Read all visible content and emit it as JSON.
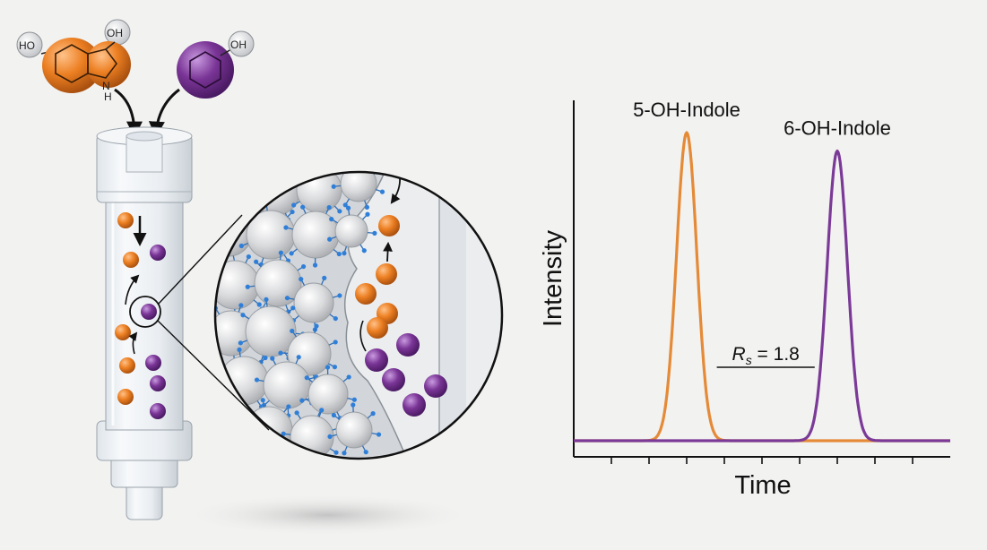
{
  "molecules": {
    "indole_oh_left": "HO",
    "indole_oh_top": "OH",
    "indole_nh_n": "N",
    "indole_nh_h": "H",
    "phenol_oh": "OH",
    "indole_color": "#e07a25",
    "phenol_color": "#7b3a97"
  },
  "chart_data": {
    "type": "line",
    "xlabel": "Time",
    "ylabel": "Intensity",
    "series": [
      {
        "name": "5-OH-Indole",
        "color": "#e58a37",
        "peak_time": 3.0,
        "peak_height": 1.0,
        "width": 0.27
      },
      {
        "name": "6-OH-Indole",
        "color": "#7b3a97",
        "peak_time": 7.0,
        "peak_height": 0.94,
        "width": 0.27
      }
    ],
    "xlim": [
      0,
      10
    ],
    "ylim": [
      0,
      1.0
    ],
    "x_ticks": [
      1,
      2,
      3,
      4,
      5,
      6,
      7,
      8,
      9
    ],
    "annotation": {
      "symbol": "R",
      "subscript": "s",
      "text": " = 1.8"
    }
  }
}
